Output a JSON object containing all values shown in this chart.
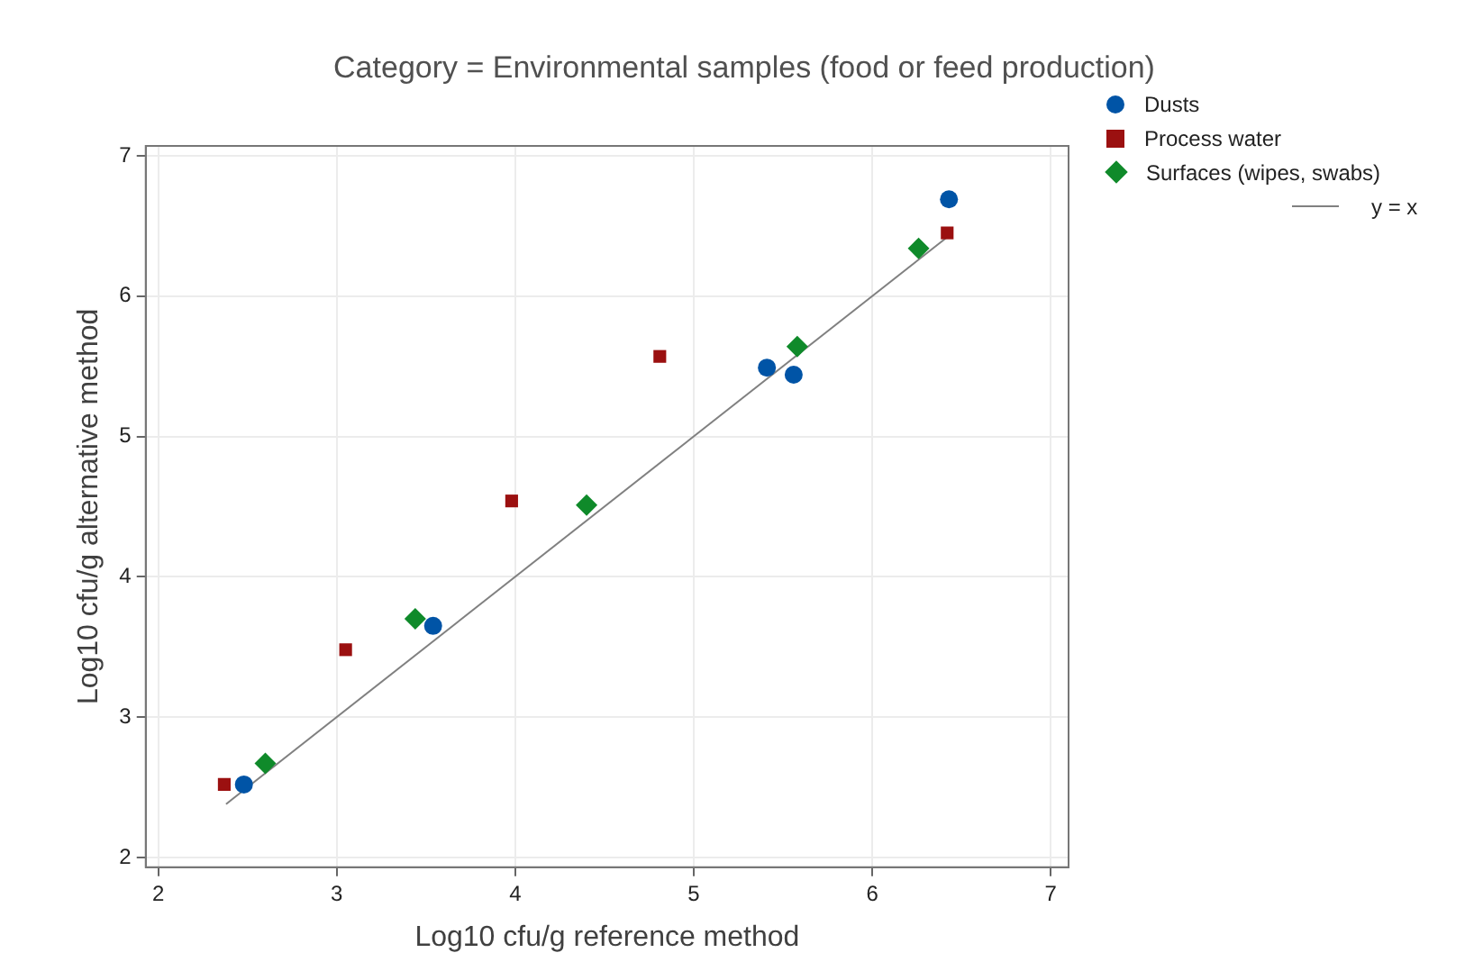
{
  "chart_data": {
    "type": "scatter",
    "title": "Category = Environmental samples (food or feed production)",
    "xlabel": "Log10 cfu/g reference method",
    "ylabel": "Log10 cfu/g alternative method",
    "xlim": [
      1.93,
      7.1
    ],
    "ylim": [
      1.93,
      7.07
    ],
    "xticks": [
      2,
      3,
      4,
      5,
      6,
      7
    ],
    "yticks": [
      2,
      3,
      4,
      5,
      6,
      7
    ],
    "grid": true,
    "legend": "right",
    "series": [
      {
        "name": "Dusts",
        "color": "#0054a6",
        "marker": "circle",
        "x": [
          2.48,
          3.54,
          5.41,
          5.56,
          6.43
        ],
        "values": [
          2.52,
          3.65,
          5.49,
          5.44,
          6.69
        ]
      },
      {
        "name": "Process water",
        "color": "#9b1010",
        "marker": "square",
        "x": [
          2.37,
          3.05,
          3.98,
          4.81,
          6.42
        ],
        "values": [
          2.52,
          3.48,
          4.54,
          5.57,
          6.45
        ]
      },
      {
        "name": "Surfaces (wipes, swabs)",
        "color": "#0f8a2a",
        "marker": "diamond",
        "x": [
          2.6,
          3.44,
          4.4,
          5.58,
          6.26
        ],
        "values": [
          2.67,
          3.7,
          4.51,
          5.64,
          6.34
        ]
      },
      {
        "name": "y = x",
        "type": "line",
        "color": "#808080",
        "line_style": "solid",
        "marker": "none",
        "x": [
          2.38,
          6.43
        ],
        "values": [
          2.38,
          6.43
        ]
      }
    ]
  }
}
